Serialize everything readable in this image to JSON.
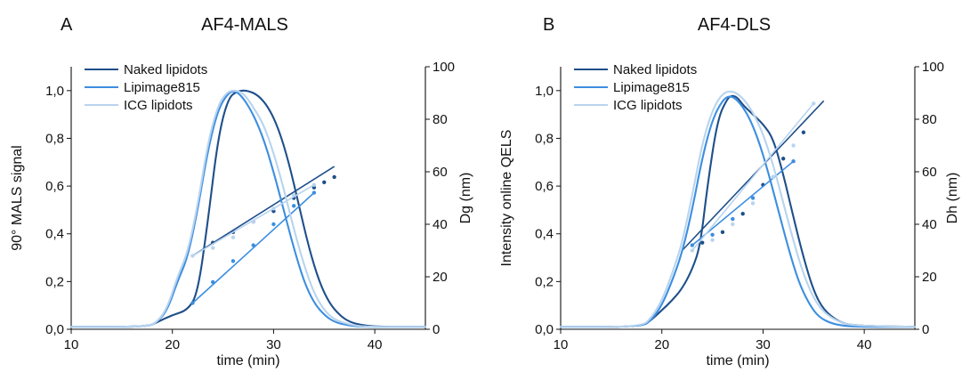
{
  "chart_data": [
    {
      "type": "line",
      "panel_letter": "A",
      "title": "AF4-MALS",
      "xlabel": "time (min)",
      "ylabel": "90° MALS signal",
      "y2label": "Dg (nm)",
      "xlim": [
        10,
        45
      ],
      "ylim": [
        0,
        1.1
      ],
      "y2lim": [
        0,
        100
      ],
      "x_ticks": [
        10,
        20,
        30,
        40
      ],
      "y_ticks": [
        "0,0",
        "0,2",
        "0,4",
        "0,6",
        "0,8",
        "1,0"
      ],
      "y2_ticks": [
        "0",
        "20",
        "40",
        "60",
        "80",
        "100"
      ],
      "legend_position": "top-left",
      "series": [
        {
          "name": "Naked lipidots",
          "color": "#1f4f8a",
          "x": [
            10,
            17.5,
            18.5,
            20,
            21.5,
            22.5,
            23.5,
            24.5,
            25.5,
            26.5,
            27.5,
            28.5,
            29.5,
            30.5,
            31.5,
            32.5,
            33.5,
            34.5,
            35.5,
            36.5,
            37.5,
            39,
            41,
            45
          ],
          "y": [
            0.01,
            0.01,
            0.03,
            0.06,
            0.08,
            0.15,
            0.45,
            0.8,
            0.97,
            1.0,
            1.0,
            0.98,
            0.93,
            0.84,
            0.7,
            0.52,
            0.34,
            0.2,
            0.11,
            0.06,
            0.03,
            0.015,
            0.01,
            0.01
          ],
          "size_x": [
            24,
            26,
            28,
            30,
            32,
            34,
            35,
            36
          ],
          "size_y": [
            33,
            37,
            41,
            45,
            50,
            54,
            56,
            58
          ],
          "fit_x": [
            22,
            36
          ],
          "fit_y": [
            28,
            62
          ]
        },
        {
          "name": "Lipimage815",
          "color": "#3d8ee0",
          "x": [
            10,
            17.5,
            18.5,
            19.5,
            20.5,
            21.5,
            22.5,
            23.5,
            24.5,
            25.5,
            26.2,
            27,
            28,
            29,
            30,
            31,
            32,
            33,
            34,
            35,
            36,
            37.5,
            39,
            45
          ],
          "y": [
            0.01,
            0.01,
            0.03,
            0.08,
            0.2,
            0.3,
            0.5,
            0.75,
            0.92,
            0.99,
            1.0,
            0.97,
            0.9,
            0.8,
            0.66,
            0.5,
            0.34,
            0.2,
            0.11,
            0.06,
            0.03,
            0.015,
            0.01,
            0.01
          ],
          "size_x": [
            22,
            24,
            26,
            28,
            30,
            32,
            34
          ],
          "size_y": [
            10,
            18,
            26,
            32,
            40,
            47,
            52
          ],
          "fit_x": [
            22,
            34
          ],
          "fit_y": [
            10,
            52
          ]
        },
        {
          "name": "ICG lipidots",
          "color": "#b8d4ee",
          "x": [
            10,
            17.5,
            18.5,
            19.5,
            20.5,
            21.5,
            22.5,
            23.5,
            24.5,
            25.5,
            26.5,
            27.2,
            28,
            29,
            30,
            31,
            32,
            33,
            34,
            35,
            36,
            37.5,
            39,
            45
          ],
          "y": [
            0.01,
            0.01,
            0.03,
            0.09,
            0.22,
            0.32,
            0.52,
            0.78,
            0.94,
            1.0,
            1.0,
            0.98,
            0.93,
            0.86,
            0.74,
            0.59,
            0.42,
            0.27,
            0.15,
            0.08,
            0.04,
            0.02,
            0.01,
            0.01
          ],
          "size_x": [
            22,
            24,
            26,
            28,
            30,
            32,
            34
          ],
          "size_y": [
            28,
            31,
            35,
            41,
            46,
            51,
            55
          ],
          "fit_x": [
            22,
            34
          ],
          "fit_y": [
            28,
            55
          ]
        }
      ]
    },
    {
      "type": "line",
      "panel_letter": "B",
      "title": "AF4-DLS",
      "xlabel": "time (min)",
      "ylabel": "Intensity online QELS",
      "y2label": "Dh (nm)",
      "xlim": [
        10,
        45
      ],
      "ylim": [
        0,
        1.1
      ],
      "y2lim": [
        0,
        100
      ],
      "x_ticks": [
        10,
        20,
        30,
        40
      ],
      "y_ticks": [
        "0,0",
        "0,2",
        "0,4",
        "0,6",
        "0,8",
        "1,0"
      ],
      "y2_ticks": [
        "0",
        "20",
        "40",
        "60",
        "80",
        "100"
      ],
      "legend_position": "top-left",
      "series": [
        {
          "name": "Naked lipidots",
          "color": "#1f4f8a",
          "x": [
            10,
            18,
            19,
            20,
            21,
            22,
            23,
            23.8,
            24.5,
            25.5,
            26.5,
            27,
            27.5,
            28,
            29,
            30,
            31,
            32,
            33,
            34,
            35,
            36,
            37.5,
            39,
            45
          ],
          "y": [
            0.01,
            0.01,
            0.04,
            0.08,
            0.12,
            0.17,
            0.25,
            0.35,
            0.6,
            0.88,
            0.97,
            0.98,
            0.97,
            0.94,
            0.9,
            0.86,
            0.8,
            0.65,
            0.47,
            0.3,
            0.16,
            0.08,
            0.03,
            0.015,
            0.01
          ],
          "size_x": [
            24,
            26,
            28,
            30,
            32,
            34
          ],
          "size_y": [
            33,
            37,
            44,
            55,
            65,
            75
          ],
          "fit_x": [
            22,
            36
          ],
          "fit_y": [
            30,
            87
          ]
        },
        {
          "name": "Lipimage815",
          "color": "#3d8ee0",
          "x": [
            10,
            18,
            19,
            20,
            21,
            22,
            23,
            24,
            25,
            26,
            26.7,
            27.5,
            28.5,
            29.5,
            30.5,
            31.5,
            32.5,
            33.5,
            34.5,
            35.5,
            37,
            39,
            45
          ],
          "y": [
            0.01,
            0.01,
            0.04,
            0.1,
            0.2,
            0.32,
            0.5,
            0.72,
            0.88,
            0.96,
            0.98,
            0.96,
            0.9,
            0.8,
            0.66,
            0.5,
            0.34,
            0.2,
            0.11,
            0.05,
            0.02,
            0.01,
            0.01
          ],
          "size_x": [
            23,
            25,
            27,
            29,
            31,
            33
          ],
          "size_y": [
            32,
            36,
            42,
            50,
            58,
            64
          ],
          "fit_x": [
            23,
            33
          ],
          "fit_y": [
            32,
            64
          ]
        },
        {
          "name": "ICG lipidots",
          "color": "#b8d4ee",
          "x": [
            10,
            18,
            19,
            20,
            21,
            22,
            23,
            24,
            25,
            26,
            27,
            28,
            29,
            30,
            31,
            32,
            33,
            34,
            35,
            36,
            37.5,
            39,
            45
          ],
          "y": [
            0.01,
            0.01,
            0.05,
            0.12,
            0.23,
            0.36,
            0.56,
            0.78,
            0.92,
            0.99,
            1.0,
            0.97,
            0.91,
            0.82,
            0.69,
            0.53,
            0.37,
            0.23,
            0.13,
            0.07,
            0.03,
            0.015,
            0.01
          ],
          "size_x": [
            23,
            25,
            27,
            29,
            31,
            33,
            35
          ],
          "size_y": [
            30,
            34,
            40,
            48,
            58,
            70,
            86
          ],
          "fit_x": [
            23,
            35
          ],
          "fit_y": [
            30,
            86
          ]
        }
      ]
    }
  ]
}
